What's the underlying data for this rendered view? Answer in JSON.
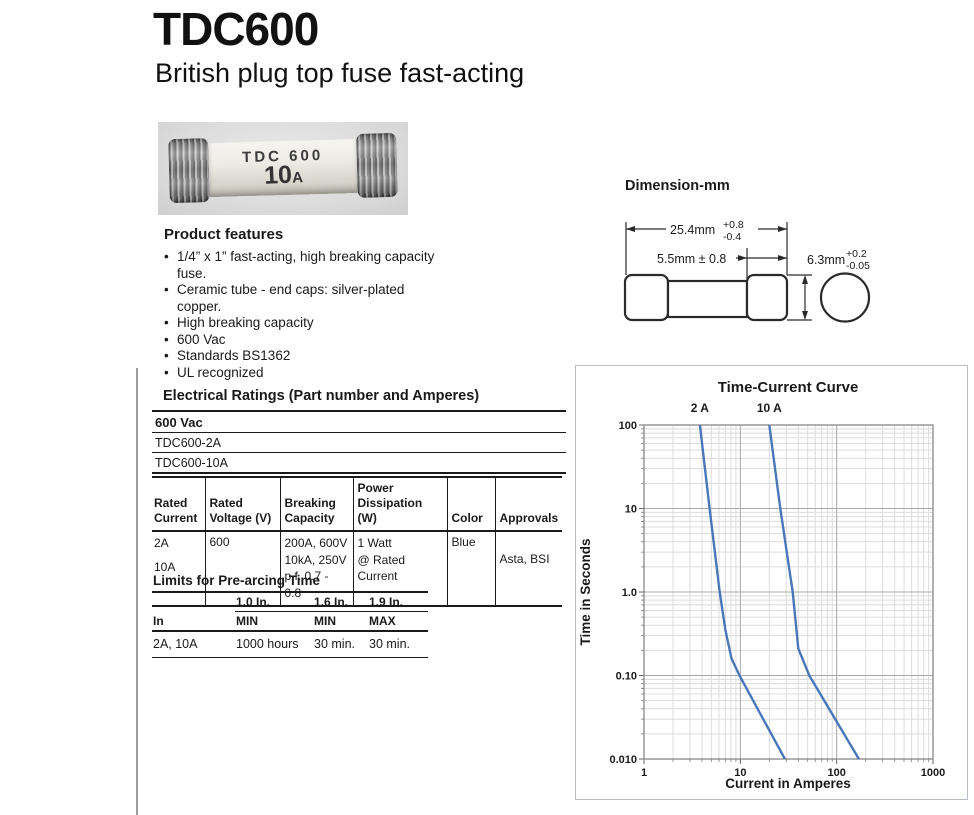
{
  "page": {
    "title": "TDC600",
    "subtitle": "British plug top fuse fast-acting"
  },
  "fuse_photo": {
    "marking_line1": "TDC 600",
    "marking_amp": "10",
    "marking_unit": "A"
  },
  "features": {
    "heading": "Product features",
    "items": [
      {
        "lines": [
          "1/4” x 1” fast-acting, high breaking capacity",
          "fuse."
        ]
      },
      {
        "lines": [
          "Ceramic tube - end caps: silver-plated",
          "copper."
        ]
      },
      {
        "lines": [
          "High breaking capacity"
        ]
      },
      {
        "lines": [
          "600 Vac"
        ]
      },
      {
        "lines": [
          "Standards BS1362"
        ]
      },
      {
        "lines": [
          "UL recognized"
        ]
      }
    ]
  },
  "dimensions": {
    "heading": "Dimension-mm",
    "overall_length": "25.4mm",
    "overall_tol_plus": "+0.8",
    "overall_tol_minus": "-0.4",
    "cap_length": "5.5mm ± 0.8",
    "diameter": "6.3mm",
    "diameter_tol_plus": "+0.2",
    "diameter_tol_minus": "-0.05"
  },
  "electrical": {
    "heading": "Electrical Ratings (Part number and Amperes)",
    "voltage_class": "600 Vac",
    "part_numbers": [
      "TDC600-2A",
      "TDC600-10A"
    ],
    "table": {
      "h_current_1": "Rated",
      "h_current_2": "Current",
      "h_voltage_1": "Rated",
      "h_voltage_2": "Voltage (V)",
      "h_breaking_1": "Breaking",
      "h_breaking_2": "Capacity",
      "h_power_1": "Power",
      "h_power_2": "Dissipation (W)",
      "h_color": "Color",
      "h_approvals": "Approvals",
      "current_1": "2A",
      "current_2": "10A",
      "voltage": "600",
      "breaking_1": "200A, 600V",
      "breaking_2": "10kA, 250V",
      "breaking_3": "p.f. 0.7 - 0.8",
      "power_1": "1 Watt",
      "power_2": "@ Rated",
      "power_3": "Current",
      "color": "Blue",
      "approvals": "Asta, BSI"
    }
  },
  "prearcing": {
    "heading": "Limits for Pre-arcing Time",
    "col_1": "1.0 In.",
    "col_2": "1.6 In.",
    "col_3": "1.9 In.",
    "row_label": "In",
    "min_1": "MIN",
    "min_2": "MIN",
    "max_1": "MAX",
    "data_label": "2A, 10A",
    "data_1": "1000 hours",
    "data_2": "30 min.",
    "data_3": "30 min."
  },
  "chart_data": {
    "type": "line",
    "title": "Time-Current Curve",
    "xlabel": "Current in Amperes",
    "ylabel": "Time in Seconds",
    "x_scale": "log",
    "y_scale": "log",
    "xlim": [
      1,
      1000
    ],
    "ylim": [
      0.01,
      100
    ],
    "grid": "log major + minor, on",
    "legend_position": "labels above curve tops",
    "line_color": "#4a77b9",
    "x_ticks": [
      {
        "v": 1,
        "label": "1"
      },
      {
        "v": 10,
        "label": "10"
      },
      {
        "v": 100,
        "label": "100"
      },
      {
        "v": 1000,
        "label": "1000"
      }
    ],
    "y_ticks": [
      {
        "v": 100,
        "label": "100"
      },
      {
        "v": 10,
        "label": "10"
      },
      {
        "v": 1,
        "label": "1.0"
      },
      {
        "v": 0.1,
        "label": "0.10"
      },
      {
        "v": 0.01,
        "label": "0.010"
      }
    ],
    "series": [
      {
        "name": "2 A",
        "points": [
          [
            3.8,
            100
          ],
          [
            4.8,
            10
          ],
          [
            6.1,
            1.0
          ],
          [
            7.0,
            0.35
          ],
          [
            8.1,
            0.16
          ],
          [
            9.8,
            0.1
          ],
          [
            29,
            0.01
          ]
        ]
      },
      {
        "name": "10 A",
        "points": [
          [
            20,
            100
          ],
          [
            26,
            10
          ],
          [
            35,
            1.0
          ],
          [
            40,
            0.21
          ],
          [
            52,
            0.1
          ],
          [
            170,
            0.01
          ]
        ]
      }
    ]
  }
}
